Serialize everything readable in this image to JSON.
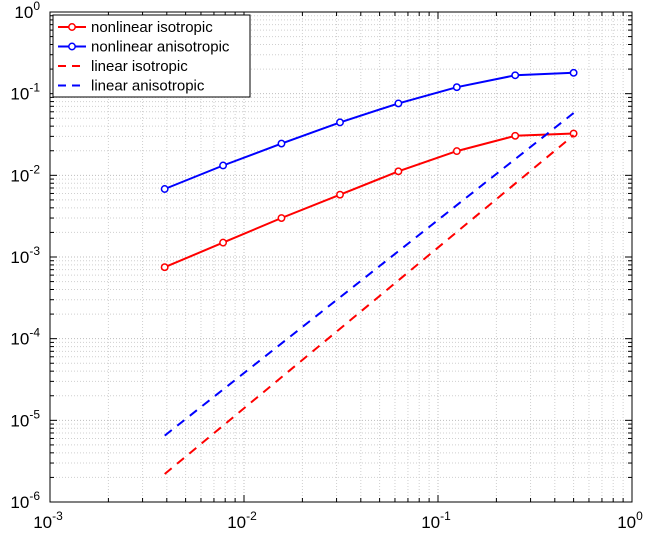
{
  "chart_data": {
    "type": "line",
    "title": "",
    "xlabel": "",
    "ylabel": "",
    "xscale": "log",
    "yscale": "log",
    "xlim": [
      0.001,
      1
    ],
    "ylim": [
      1e-06,
      1
    ],
    "grid": true,
    "legend_position": "top-left",
    "x_tick_labels": [
      {
        "base": "10",
        "exp": "-3"
      },
      {
        "base": "10",
        "exp": "-2"
      },
      {
        "base": "10",
        "exp": "-1"
      },
      {
        "base": "10",
        "exp": "0"
      }
    ],
    "y_tick_labels": [
      {
        "base": "10",
        "exp": "-6"
      },
      {
        "base": "10",
        "exp": "-5"
      },
      {
        "base": "10",
        "exp": "-4"
      },
      {
        "base": "10",
        "exp": "-3"
      },
      {
        "base": "10",
        "exp": "-2"
      },
      {
        "base": "10",
        "exp": "-1"
      },
      {
        "base": "10",
        "exp": "0"
      }
    ],
    "series": [
      {
        "name": "nonlinear isotropic",
        "color": "#ff0000",
        "style": "solid",
        "marker": "circle",
        "x": [
          0.0039,
          0.0078,
          0.0156,
          0.03125,
          0.0625,
          0.125,
          0.25,
          0.5
        ],
        "y": [
          0.00075,
          0.0015,
          0.003,
          0.0058,
          0.0112,
          0.0198,
          0.0305,
          0.0325
        ]
      },
      {
        "name": "nonlinear anisotropic",
        "color": "#0000ff",
        "style": "solid",
        "marker": "circle",
        "x": [
          0.0039,
          0.0078,
          0.0156,
          0.03125,
          0.0625,
          0.125,
          0.25,
          0.5
        ],
        "y": [
          0.0068,
          0.0132,
          0.0245,
          0.0445,
          0.076,
          0.12,
          0.168,
          0.18
        ]
      },
      {
        "name": "linear isotropic",
        "color": "#ff0000",
        "style": "dashed",
        "marker": "none",
        "x": [
          0.0039,
          0.5
        ],
        "y": [
          2.2e-06,
          0.031
        ]
      },
      {
        "name": "linear anisotropic",
        "color": "#0000ff",
        "style": "dashed",
        "marker": "none",
        "x": [
          0.0039,
          0.5
        ],
        "y": [
          6.5e-06,
          0.058
        ]
      }
    ]
  }
}
